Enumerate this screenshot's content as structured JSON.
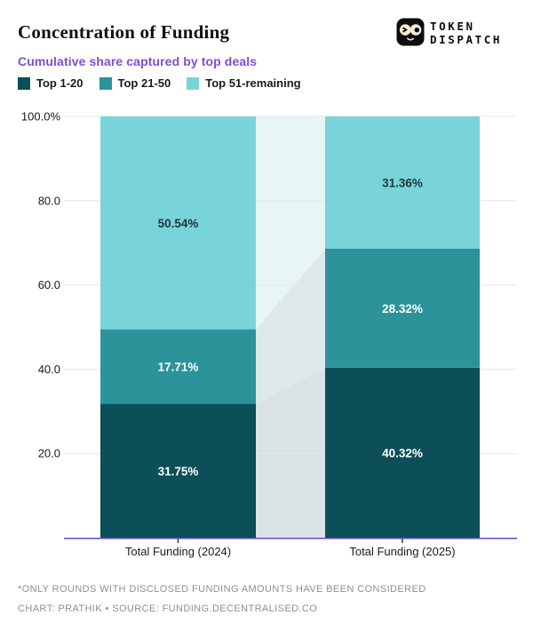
{
  "header": {
    "title": "Concentration of Funding",
    "subtitle": "Cumulative share captured by top deals",
    "logo": {
      "line1": "TOKEN",
      "line2": "DISPATCH"
    }
  },
  "legend": [
    {
      "label": "Top 1-20",
      "color": "#0c4f58"
    },
    {
      "label": "Top 21-50",
      "color": "#2d939b"
    },
    {
      "label": "Top 51-remaining",
      "color": "#79d4da"
    }
  ],
  "chart_data": {
    "type": "bar",
    "stacked": true,
    "categories": [
      "Total Funding (2024)",
      "Total Funding (2025)"
    ],
    "series": [
      {
        "name": "Top 1-20",
        "values": [
          31.75,
          40.32
        ],
        "color": "#0c4f58",
        "label_color": "#ffffff"
      },
      {
        "name": "Top 21-50",
        "values": [
          17.71,
          28.32
        ],
        "color": "#2d939b",
        "label_color": "#ffffff"
      },
      {
        "name": "Top 51-remaining",
        "values": [
          50.54,
          31.36
        ],
        "color": "#79d4da",
        "label_color": "#1d3538"
      }
    ],
    "segment_labels": [
      [
        "31.75%",
        "40.32%"
      ],
      [
        "17.71%",
        "28.32%"
      ],
      [
        "50.54%",
        "31.36%"
      ]
    ],
    "y_ticks": [
      {
        "value": 100,
        "label": "100.0%"
      },
      {
        "value": 80,
        "label": "80.0"
      },
      {
        "value": 60,
        "label": "60.0"
      },
      {
        "value": 40,
        "label": "40.0"
      },
      {
        "value": 20,
        "label": "20.0"
      }
    ],
    "ylim": [
      0,
      100
    ],
    "grid": true,
    "legend_position": "top",
    "connector_ribbon_colors": [
      "#d9e3e5",
      "#dde8ea",
      "#e7f6f5"
    ],
    "axis_color": "#6a47c5",
    "grid_color": "#e3e8e9",
    "tick_mark_color": "#333333",
    "y_label_color": "#1a1a1a",
    "x_label_color": "#1a1a1a"
  },
  "footer": {
    "note": "*ONLY ROUNDS WITH DISCLOSED FUNDING AMOUNTS HAVE BEEN CONSIDERED",
    "credit": "CHART: PRATHIK • SOURCE: FUNDING.DECENTRALISED.CO"
  }
}
